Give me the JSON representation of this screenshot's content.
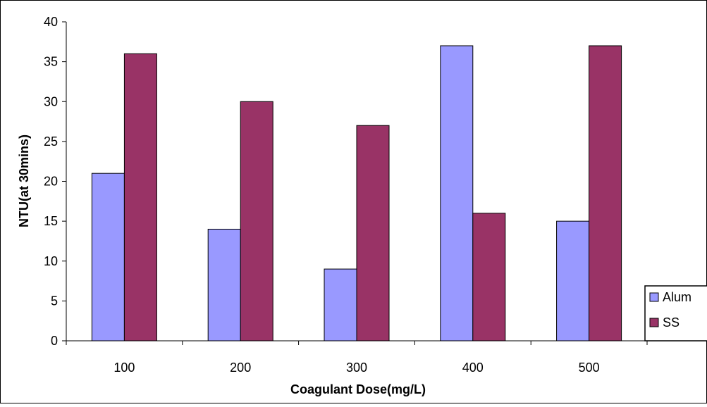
{
  "chart_data": {
    "type": "bar",
    "title": "",
    "xlabel": "Coagulant Dose(mg/L)",
    "ylabel": "NTU(at 30mins)",
    "categories": [
      "100",
      "200",
      "300",
      "400",
      "500"
    ],
    "series": [
      {
        "name": "Alum",
        "values": [
          21,
          14,
          9,
          37,
          15
        ],
        "color": "#9999ff"
      },
      {
        "name": "SS",
        "values": [
          36,
          30,
          27,
          16,
          37
        ],
        "color": "#993366"
      }
    ],
    "ylim": [
      0,
      40
    ],
    "yticks": [
      "0",
      "5",
      "10",
      "15",
      "20",
      "25",
      "30",
      "35",
      "40"
    ],
    "grid": false,
    "legend_position": "right"
  }
}
